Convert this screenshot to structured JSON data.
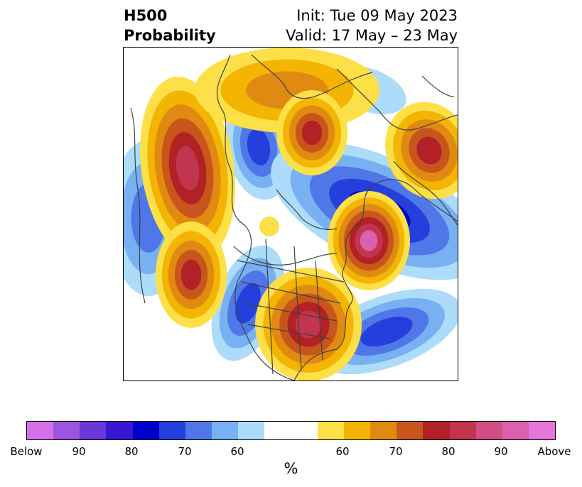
{
  "title": {
    "left_line1": "H500",
    "left_line2": "Probability",
    "right_line1": "Init: Tue 09 May 2023",
    "right_line2": "Valid: 17 May – 23 May"
  },
  "colorbar": {
    "label": "%",
    "tick_labels": [
      "Below",
      "90",
      "80",
      "70",
      "60",
      "60",
      "70",
      "80",
      "90",
      "Above"
    ],
    "colors": [
      "#d670e8",
      "#9b55e0",
      "#6a38d8",
      "#3a16d2",
      "#0000cc",
      "#243fdc",
      "#4f77e8",
      "#78b0f2",
      "#acdcfa",
      "#ffffff",
      "#ffffff",
      "#fde047",
      "#f3b403",
      "#e08a12",
      "#c8561c",
      "#b12126",
      "#c23550",
      "#cf4f82",
      "#db60ad",
      "#e676db"
    ]
  },
  "map_colors": {
    "above": [
      "#fde047",
      "#f3b403",
      "#e08a12",
      "#c8561c",
      "#b12126",
      "#c23550",
      "#db60ad"
    ],
    "below": [
      "#acdcfa",
      "#78b0f2",
      "#4f77e8",
      "#243fdc",
      "#0000cc"
    ],
    "coastline": "#404040"
  }
}
